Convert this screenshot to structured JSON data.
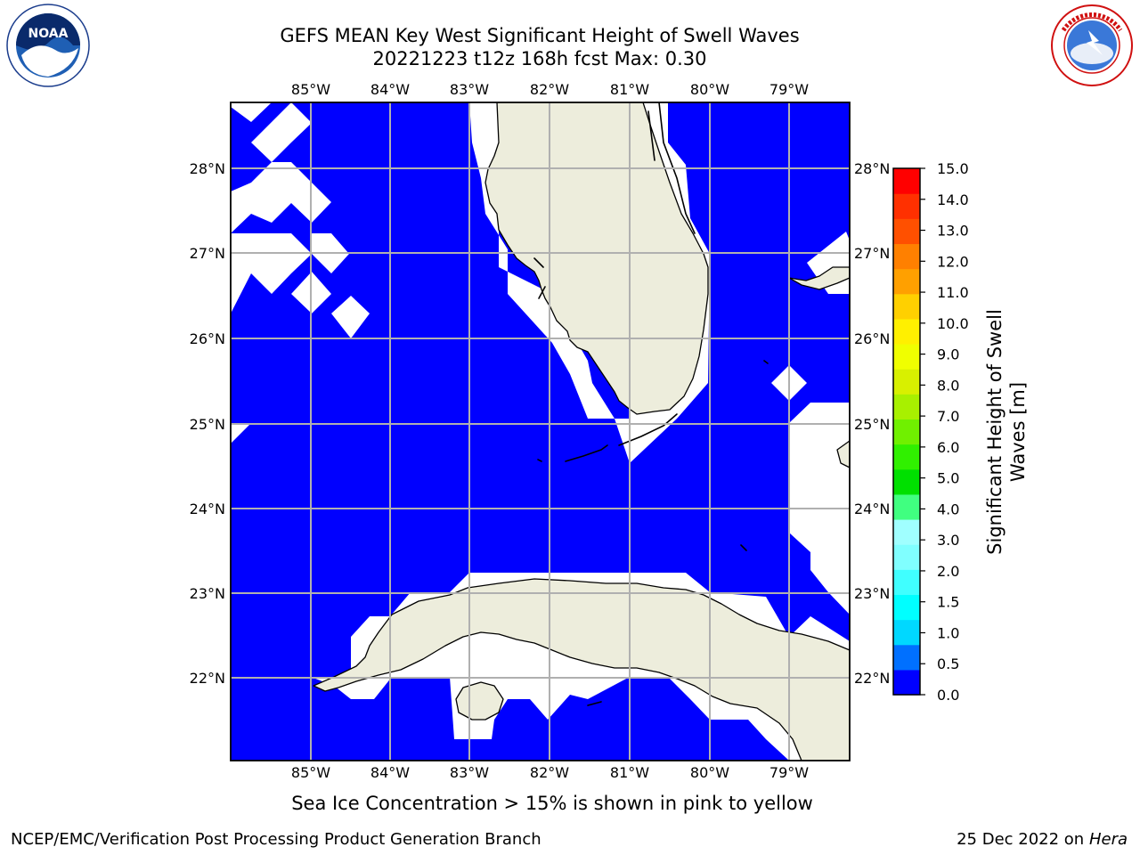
{
  "title_line1": "GEFS MEAN Key West Significant Height of Swell Waves",
  "title_line2": "20221223 t12z 168h fcst   Max: 0.30",
  "logos": {
    "left": "NOAA",
    "right": "NATIONAL WEATHER SERVICE"
  },
  "map": {
    "lon_labels": [
      "85°W",
      "84°W",
      "83°W",
      "82°W",
      "81°W",
      "80°W",
      "79°W"
    ],
    "lat_labels": [
      "28°N",
      "27°N",
      "26°N",
      "25°N",
      "24°N",
      "23°N",
      "22°N"
    ],
    "colors": {
      "ocean": "#0000ff",
      "land": "#ededdc",
      "undefined": "#ffffff",
      "grid": "#b0b0b0"
    }
  },
  "colorbar": {
    "label": "Significant Height of Swell Waves [m]",
    "ticks": [
      "15.0",
      "14.0",
      "13.0",
      "12.0",
      "11.0",
      "10.0",
      "9.0",
      "8.0",
      "7.0",
      "6.0",
      "5.0",
      "4.0",
      "3.0",
      "2.0",
      "1.5",
      "1.0",
      "0.5",
      "0.0"
    ],
    "colors_bottom_to_top": [
      "#0000ff",
      "#0070ff",
      "#00d8ff",
      "#00ffff",
      "#40ffff",
      "#80ffff",
      "#a0ffff",
      "#40ff80",
      "#00e000",
      "#30f000",
      "#70f000",
      "#a8f000",
      "#d8f000",
      "#f0ff00",
      "#fff000",
      "#ffd000",
      "#ffa000",
      "#ff8000",
      "#ff5000",
      "#ff3000",
      "#ff0000"
    ]
  },
  "sea_ice_note": "Sea Ice Concentration > 15% is shown in pink to yellow",
  "footer": {
    "left": "NCEP/EMC/Verification Post Processing Product Generation Branch",
    "right_date": "25 Dec 2022 on",
    "right_host": "Hera"
  }
}
